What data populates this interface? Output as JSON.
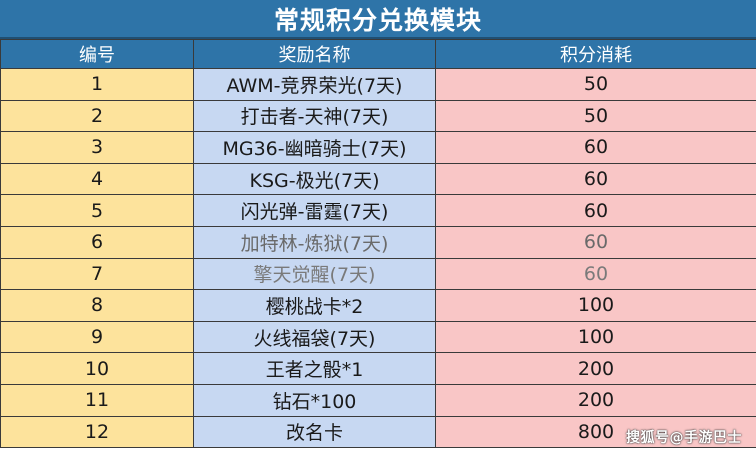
{
  "title": "常规积分兑换模块",
  "headers": {
    "id": "编号",
    "name": "奖励名称",
    "cost": "积分消耗"
  },
  "rows": [
    {
      "id": "1",
      "name": "AWM-竞界荣光(7天)",
      "cost": "50"
    },
    {
      "id": "2",
      "name": "打击者-天神(7天)",
      "cost": "50"
    },
    {
      "id": "3",
      "name": "MG36-幽暗骑士(7天)",
      "cost": "60"
    },
    {
      "id": "4",
      "name": "KSG-极光(7天)",
      "cost": "60"
    },
    {
      "id": "5",
      "name": "闪光弹-雷霆(7天)",
      "cost": "60"
    },
    {
      "id": "6",
      "name": "加特林-炼狱(7天)",
      "cost": "60"
    },
    {
      "id": "7",
      "name": "擎天觉醒(7天)",
      "cost": "60"
    },
    {
      "id": "8",
      "name": "樱桃战卡*2",
      "cost": "100"
    },
    {
      "id": "9",
      "name": "火线福袋(7天)",
      "cost": "100"
    },
    {
      "id": "10",
      "name": "王者之骰*1",
      "cost": "200"
    },
    {
      "id": "11",
      "name": "钻石*100",
      "cost": "200"
    },
    {
      "id": "12",
      "name": "改名卡",
      "cost": "800"
    }
  ],
  "watermark": "搜狐号@手游巴士",
  "colors": {
    "header_bg": "#2e74a8",
    "id_col_bg": "#fde39c",
    "name_col_bg": "#c7d8f2",
    "cost_col_bg": "#f9c6c6"
  }
}
